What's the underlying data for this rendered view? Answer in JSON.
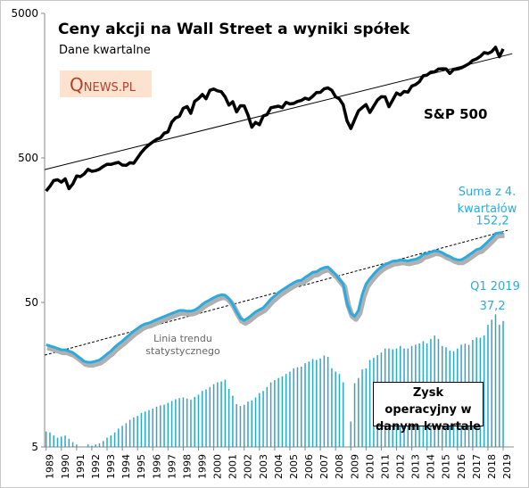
{
  "chart_data": {
    "type": "line",
    "title": "Ceny akcji na Wall Street a wyniki spółek",
    "subtitle": "Dane kwartalne",
    "logo": {
      "initial": "Q",
      "rest": "NEWS.PL"
    },
    "log_scale": true,
    "grid": false,
    "xlim": [
      1988.9,
      2019.7
    ],
    "xticks": [
      1989,
      1990,
      1991,
      1992,
      1993,
      1994,
      1995,
      1996,
      1997,
      1998,
      1999,
      2000,
      2001,
      2002,
      2003,
      2004,
      2005,
      2006,
      2007,
      2008,
      2009,
      2010,
      2011,
      2012,
      2013,
      2014,
      2015,
      2016,
      2017,
      2018,
      2019
    ],
    "ylim": [
      5,
      5000
    ],
    "yticks": [
      5,
      50,
      500,
      5000
    ],
    "x": [
      1989,
      1989.25,
      1989.5,
      1989.75,
      1990,
      1990.25,
      1990.5,
      1990.75,
      1991,
      1991.25,
      1991.5,
      1991.75,
      1992,
      1992.25,
      1992.5,
      1992.75,
      1993,
      1993.25,
      1993.5,
      1993.75,
      1994,
      1994.25,
      1994.5,
      1994.75,
      1995,
      1995.25,
      1995.5,
      1995.75,
      1996,
      1996.25,
      1996.5,
      1996.75,
      1997,
      1997.25,
      1997.5,
      1997.75,
      1998,
      1998.25,
      1998.5,
      1998.75,
      1999,
      1999.25,
      1999.5,
      1999.75,
      2000,
      2000.25,
      2000.5,
      2000.75,
      2001,
      2001.25,
      2001.5,
      2001.75,
      2002,
      2002.25,
      2002.5,
      2002.75,
      2003,
      2003.25,
      2003.5,
      2003.75,
      2004,
      2004.25,
      2004.5,
      2004.75,
      2005,
      2005.25,
      2005.5,
      2005.75,
      2006,
      2006.25,
      2006.5,
      2006.75,
      2007,
      2007.25,
      2007.5,
      2007.75,
      2008,
      2008.25,
      2008.5,
      2008.75,
      2009,
      2009.25,
      2009.5,
      2009.75,
      2010,
      2010.25,
      2010.5,
      2010.75,
      2011,
      2011.25,
      2011.5,
      2011.75,
      2012,
      2012.25,
      2012.5,
      2012.75,
      2013,
      2013.25,
      2013.5,
      2013.75,
      2014,
      2014.25,
      2014.5,
      2014.75,
      2015,
      2015.25,
      2015.5,
      2015.75,
      2016,
      2016.25,
      2016.5,
      2016.75,
      2017,
      2017.25,
      2017.5,
      2017.75,
      2018,
      2018.25,
      2018.5,
      2018.75,
      2019
    ],
    "series": [
      {
        "name": "S&P 500",
        "color": "#000000",
        "style": "line",
        "values": [
          295,
          318,
          349,
          353,
          340,
          358,
          306,
          330,
          375,
          371,
          387,
          417,
          404,
          408,
          418,
          436,
          452,
          451,
          459,
          466,
          446,
          444,
          463,
          459,
          501,
          545,
          584,
          616,
          645,
          671,
          687,
          741,
          757,
          885,
          947,
          970,
          1102,
          1134,
          1017,
          1229,
          1286,
          1373,
          1283,
          1469,
          1499,
          1455,
          1436,
          1320,
          1160,
          1224,
          1041,
          1148,
          1147,
          990,
          815,
          880,
          848,
          975,
          996,
          1112,
          1126,
          1141,
          1115,
          1212,
          1181,
          1191,
          1229,
          1248,
          1295,
          1270,
          1336,
          1418,
          1421,
          1503,
          1527,
          1468,
          1323,
          1280,
          1166,
          903,
          798,
          919,
          1057,
          1115,
          1169,
          1031,
          1141,
          1258,
          1326,
          1321,
          1131,
          1258,
          1408,
          1362,
          1441,
          1426,
          1569,
          1606,
          1682,
          1848,
          1872,
          1960,
          1972,
          2059,
          2068,
          2063,
          1920,
          2044,
          2060,
          2099,
          2168,
          2239,
          2363,
          2423,
          2519,
          2674,
          2641,
          2718,
          2914,
          2507,
          2834
        ]
      },
      {
        "name": "Suma z 4. kwartałów",
        "color": "#29abe2",
        "style": "line",
        "values": [
          25.5,
          25.0,
          24.6,
          24.0,
          23.5,
          23.5,
          23.0,
          22.5,
          21.5,
          20.5,
          19.5,
          19.3,
          19.3,
          19.6,
          20.0,
          20.9,
          22.0,
          23.0,
          24.5,
          25.8,
          27.0,
          28.5,
          30.0,
          31.7,
          33.0,
          34.5,
          35.5,
          36.0,
          37.0,
          38.0,
          39.0,
          40.0,
          41.0,
          42.0,
          43.0,
          44.0,
          44.0,
          43.5,
          43.5,
          44.3,
          46.0,
          48.5,
          50.5,
          52.0,
          54.0,
          55.5,
          56.5,
          56.1,
          53.0,
          48.5,
          43.0,
          38.9,
          37.5,
          39.0,
          41.0,
          43.0,
          44.5,
          46.0,
          49.0,
          52.7,
          55.5,
          58.5,
          61.0,
          63.5,
          66.0,
          68.5,
          70.5,
          71.2,
          74.5,
          77.5,
          81.0,
          81.5,
          85.0,
          87.0,
          88.0,
          82.5,
          78.0,
          72.0,
          67.0,
          49.5,
          42.0,
          40.0,
          44.0,
          56.9,
          67.0,
          73.0,
          78.5,
          83.8,
          88.0,
          91.5,
          94.0,
          96.4,
          97.0,
          98.5,
          98.0,
          96.8,
          98.5,
          99.5,
          102.0,
          107.3,
          109.0,
          111.5,
          114.0,
          113.0,
          110.5,
          106.5,
          104.0,
          100.5,
          98.5,
          98.5,
          102.0,
          106.3,
          111.0,
          116.0,
          118.0,
          124.5,
          132.0,
          140.0,
          150.0,
          151.6,
          152.2
        ],
        "value_labels": [
          null,
          null,
          null,
          null,
          null,
          null,
          null,
          null,
          null,
          null,
          null,
          null,
          null,
          null,
          null,
          null,
          null,
          null,
          null,
          null,
          null,
          null,
          null,
          null,
          null,
          null,
          null,
          null,
          null,
          null,
          null,
          null,
          null,
          null,
          null,
          null,
          null,
          null,
          null,
          null,
          null,
          null,
          null,
          null,
          null,
          null,
          null,
          null,
          null,
          null,
          null,
          null,
          null,
          null,
          null,
          null,
          null,
          null,
          null,
          null,
          null,
          null,
          null,
          null,
          null,
          null,
          null,
          null,
          null,
          null,
          null,
          null,
          null,
          null,
          null,
          null,
          null,
          null,
          null,
          null,
          null,
          null,
          null,
          null,
          null,
          null,
          null,
          null,
          null,
          null,
          null,
          null,
          null,
          null,
          null,
          null,
          null,
          null,
          null,
          null,
          null,
          null,
          null,
          null,
          null,
          null,
          null,
          null,
          null,
          null,
          null,
          null,
          null,
          null,
          null,
          null,
          null,
          null,
          null,
          null,
          "152,2"
        ]
      },
      {
        "name": "Zysk operacyjny w danym kwartale",
        "color": "#2aa8c8",
        "style": "bar",
        "values": [
          6.4,
          6.3,
          6.0,
          5.8,
          5.9,
          6.0,
          5.7,
          5.4,
          5.2,
          5.0,
          4.9,
          5.2,
          5.1,
          5.2,
          5.3,
          5.5,
          5.8,
          6.0,
          6.3,
          6.7,
          7.0,
          7.3,
          7.7,
          8.0,
          8.2,
          8.6,
          8.8,
          9.0,
          9.2,
          9.5,
          9.7,
          9.8,
          10.1,
          10.4,
          10.7,
          10.9,
          11.0,
          10.8,
          10.6,
          11.1,
          11.5,
          12.2,
          12.5,
          13.0,
          13.6,
          14.0,
          14.2,
          14.6,
          12.6,
          11.3,
          9.9,
          9.6,
          9.8,
          10.3,
          10.5,
          11.0,
          11.8,
          12.2,
          13.0,
          14.0,
          14.5,
          15.0,
          15.4,
          16.0,
          16.6,
          17.5,
          17.8,
          18.0,
          19.0,
          19.5,
          20.3,
          20.0,
          20.5,
          21.5,
          21.0,
          17.5,
          16.6,
          16.0,
          14.0,
          -0.09,
          7.5,
          13.8,
          15.0,
          17.2,
          17.5,
          20.0,
          20.7,
          21.6,
          22.5,
          24.0,
          24.0,
          23.7,
          24.0,
          25.0,
          24.0,
          24.0,
          25.0,
          25.5,
          26.0,
          27.0,
          26.0,
          28.0,
          29.5,
          28.0,
          25.0,
          24.5,
          23.2,
          23.0,
          24.0,
          25.5,
          25.9,
          25.4,
          27.5,
          28.6,
          28.5,
          29.6,
          35.0,
          38.0,
          41.4,
          35.0,
          37.2
        ],
        "value_labels": [
          null,
          null,
          null,
          null,
          null,
          null,
          null,
          null,
          null,
          null,
          null,
          null,
          null,
          null,
          null,
          null,
          null,
          null,
          null,
          null,
          null,
          null,
          null,
          null,
          null,
          null,
          null,
          null,
          null,
          null,
          null,
          null,
          null,
          null,
          null,
          null,
          null,
          null,
          null,
          null,
          null,
          null,
          null,
          null,
          null,
          null,
          null,
          null,
          null,
          null,
          null,
          null,
          null,
          null,
          null,
          null,
          null,
          null,
          null,
          null,
          null,
          null,
          null,
          null,
          null,
          null,
          null,
          null,
          null,
          null,
          null,
          null,
          null,
          null,
          null,
          null,
          null,
          null,
          null,
          null,
          null,
          null,
          null,
          null,
          null,
          null,
          null,
          null,
          null,
          null,
          null,
          null,
          null,
          null,
          null,
          null,
          null,
          null,
          null,
          null,
          null,
          null,
          null,
          null,
          null,
          null,
          null,
          null,
          null,
          null,
          null,
          null,
          null,
          null,
          null,
          null,
          null,
          null,
          null,
          null,
          "37,2"
        ]
      }
    ],
    "trends": [
      {
        "style": "solid",
        "color": "#000000",
        "x": [
          1988.9,
          2019.6
        ],
        "values": [
          415,
          2630
        ]
      },
      {
        "style": "dashed",
        "color": "#000000",
        "x": [
          1988.9,
          2019.3
        ],
        "values": [
          21.6,
          158
        ]
      }
    ],
    "annotations": {
      "trend_note": "Linia trendu statystycznego",
      "last_quarter": "Q1 2019"
    }
  }
}
